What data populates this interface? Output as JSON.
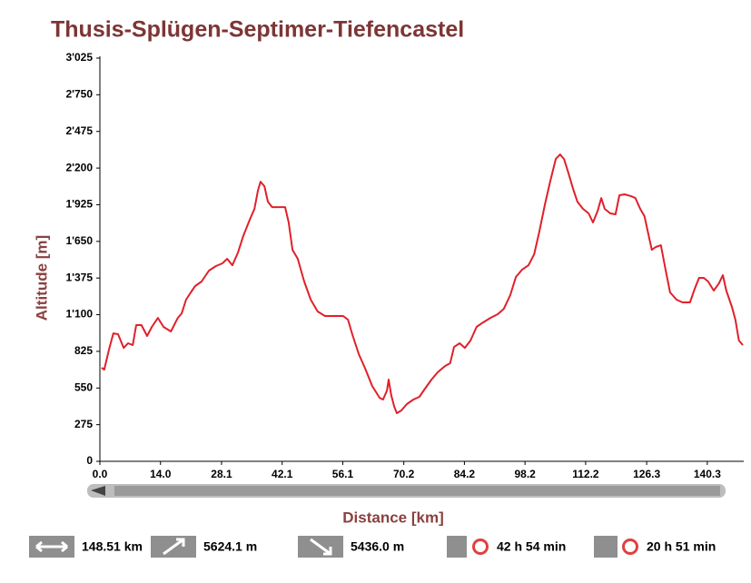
{
  "chart_data": {
    "type": "line",
    "title": "Thusis-Splügen-Septimer-Tiefencastel",
    "x_label": "Distance [km]",
    "y_label": "Altitude [m]",
    "color": "#e0202a",
    "xlim": [
      0,
      148.51
    ],
    "ylim": [
      0,
      3025
    ],
    "xticks": [
      {
        "value": 0,
        "label": "0.0"
      },
      {
        "value": 14,
        "label": "14.0"
      },
      28.1,
      42.1,
      56.1,
      70.2,
      84.2,
      98.2,
      112.2,
      126.3,
      140.3
    ],
    "yticks": [
      0,
      275,
      550,
      825,
      {
        "value": 1100,
        "label": "1'100"
      },
      {
        "value": 1375,
        "label": "1'375"
      },
      {
        "value": 1650,
        "label": "1'650"
      },
      {
        "value": 1925,
        "label": "1'925"
      },
      {
        "value": 2200,
        "label": "2'200"
      },
      {
        "value": 2475,
        "label": "2'475"
      },
      {
        "value": 2750,
        "label": "2'750"
      },
      {
        "value": 3025,
        "label": "3'025"
      }
    ],
    "x": [
      0.4,
      1.0,
      2.1,
      3.1,
      4.2,
      5.5,
      6.5,
      7.6,
      8.4,
      9.6,
      10.9,
      12.0,
      13.4,
      14.7,
      16.4,
      18.0,
      18.9,
      19.9,
      21.0,
      22.0,
      23.5,
      25.2,
      26.8,
      28.3,
      29.4,
      30.6,
      31.9,
      33.1,
      34.6,
      35.7,
      36.5,
      37.1,
      38.0,
      38.8,
      39.8,
      41.5,
      42.8,
      43.6,
      44.5,
      45.7,
      47.2,
      48.7,
      50.3,
      52.0,
      54.1,
      56.2,
      57.3,
      58.3,
      59.8,
      61.2,
      62.9,
      64.6,
      65.4,
      66.3,
      66.7,
      67.3,
      68.0,
      68.6,
      69.6,
      70.9,
      72.4,
      73.8,
      75.1,
      76.6,
      78.0,
      79.7,
      80.9,
      81.8,
      83.1,
      84.3,
      85.6,
      87.0,
      88.5,
      90.2,
      91.9,
      93.3,
      94.8,
      96.1,
      97.5,
      99.0,
      100.3,
      101.5,
      102.8,
      104.0,
      105.3,
      106.3,
      107.2,
      108.2,
      109.3,
      110.3,
      111.6,
      112.9,
      113.9,
      115.0,
      115.8,
      116.6,
      117.9,
      119.1,
      120.0,
      121.2,
      122.7,
      123.7,
      124.8,
      125.8,
      126.7,
      127.5,
      128.4,
      129.6,
      130.7,
      131.7,
      133.2,
      134.6,
      136.3,
      137.4,
      138.4,
      139.5,
      140.5,
      141.8,
      143.0,
      143.9,
      144.7,
      146.0,
      146.8,
      147.6,
      148.5
    ],
    "values": [
      702,
      688,
      838,
      960,
      954,
      851,
      886,
      872,
      1022,
      1022,
      940,
      1008,
      1076,
      1008,
      974,
      1076,
      1110,
      1213,
      1267,
      1315,
      1349,
      1431,
      1465,
      1485,
      1519,
      1471,
      1567,
      1689,
      1812,
      1894,
      2030,
      2098,
      2064,
      1948,
      1907,
      1907,
      1907,
      1792,
      1587,
      1519,
      1349,
      1213,
      1124,
      1090,
      1090,
      1090,
      1063,
      954,
      804,
      702,
      565,
      477,
      463,
      531,
      613,
      497,
      409,
      361,
      381,
      429,
      463,
      484,
      545,
      613,
      668,
      715,
      736,
      858,
      886,
      851,
      906,
      1008,
      1042,
      1076,
      1104,
      1144,
      1247,
      1383,
      1437,
      1471,
      1553,
      1723,
      1928,
      2098,
      2268,
      2302,
      2268,
      2166,
      2044,
      1948,
      1894,
      1860,
      1792,
      1880,
      1975,
      1894,
      1860,
      1853,
      1996,
      2003,
      1989,
      1975,
      1894,
      1839,
      1703,
      1587,
      1608,
      1621,
      1431,
      1267,
      1213,
      1192,
      1192,
      1294,
      1376,
      1376,
      1349,
      1281,
      1335,
      1397,
      1281,
      1158,
      1063,
      906,
      872
    ]
  },
  "stats": [
    "148.51 km",
    "5624.1 m",
    "5436.0 m",
    "42 h 54 min",
    "20 h 51 min"
  ]
}
